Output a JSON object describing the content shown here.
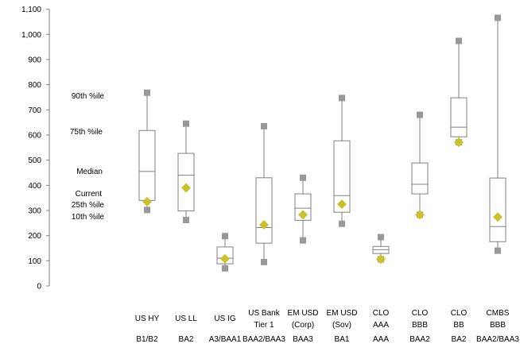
{
  "chart_data": {
    "type": "boxplot",
    "title": "",
    "ylim": [
      0,
      1100
    ],
    "yticks": [
      0,
      100,
      200,
      300,
      400,
      500,
      600,
      700,
      800,
      900,
      1000,
      1100
    ],
    "ytick_labels": [
      "0",
      "100",
      "200",
      "300",
      "400",
      "500",
      "600",
      "700",
      "800",
      "900",
      "1,000",
      "1,100"
    ],
    "legend_labels": {
      "p90": "90th %ile",
      "p75": "75th %ile",
      "median": "Median",
      "current": "Current",
      "p25": "25th %ile",
      "p10": "10th %ile"
    },
    "categories": [
      {
        "name": [
          "US HY"
        ],
        "rating": "B1/B2",
        "p10": 302,
        "p25": 340,
        "median": 455,
        "p75": 618,
        "p90": 768,
        "current": 335
      },
      {
        "name": [
          "US LL"
        ],
        "rating": "BA2",
        "p10": 262,
        "p25": 298,
        "median": 440,
        "p75": 527,
        "p90": 645,
        "current": 390
      },
      {
        "name": [
          "US IG"
        ],
        "rating": "A3/BAA1",
        "p10": 70,
        "p25": 88,
        "median": 110,
        "p75": 155,
        "p90": 198,
        "current": 108
      },
      {
        "name": [
          "US Bank",
          "Tier 1"
        ],
        "rating": "BAA2/BAA3",
        "p10": 95,
        "p25": 170,
        "median": 232,
        "p75": 430,
        "p90": 635,
        "current": 243
      },
      {
        "name": [
          "EM USD",
          "(Corp)"
        ],
        "rating": "BAA3",
        "p10": 181,
        "p25": 261,
        "median": 309,
        "p75": 366,
        "p90": 430,
        "current": 283
      },
      {
        "name": [
          "EM USD",
          "(Sov)"
        ],
        "rating": "BA1",
        "p10": 247,
        "p25": 293,
        "median": 359,
        "p75": 577,
        "p90": 747,
        "current": 325
      },
      {
        "name": [
          "CLO",
          "AAA"
        ],
        "rating": "AAA",
        "p10": 106,
        "p25": 129,
        "median": 144,
        "p75": 157,
        "p90": 194,
        "current": 106
      },
      {
        "name": [
          "CLO",
          "BBB"
        ],
        "rating": "BAA2",
        "p10": 283,
        "p25": 366,
        "median": 404,
        "p75": 489,
        "p90": 680,
        "current": 283
      },
      {
        "name": [
          "CLO",
          "BB"
        ],
        "rating": "BA2",
        "p10": 571,
        "p25": 593,
        "median": 631,
        "p75": 748,
        "p90": 974,
        "current": 571
      },
      {
        "name": [
          "CMBS",
          "BBB"
        ],
        "rating": "BAA2/BAA3",
        "p10": 140,
        "p25": 176,
        "median": 236,
        "p75": 429,
        "p90": 1066,
        "current": 274
      }
    ],
    "colors": {
      "box": "#808080",
      "percentile_marker": "#97979c",
      "current_marker": "#c9c22a"
    }
  }
}
